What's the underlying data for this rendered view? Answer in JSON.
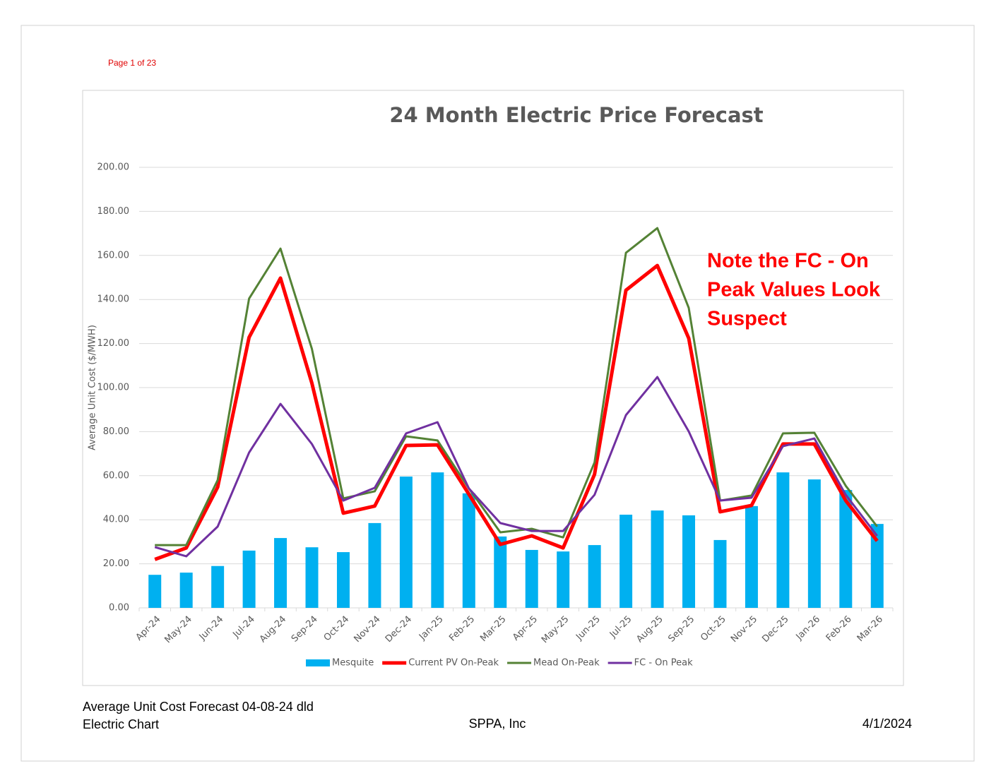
{
  "header": {
    "page": "Page 1 of 23"
  },
  "chart_data": {
    "type": "bar",
    "title": "24 Month Electric Price Forecast",
    "y_label": "Average Unit Cost ($/MWH)",
    "categories": [
      "Apr-24",
      "May-24",
      "Jun-24",
      "Jul-24",
      "Aug-24",
      "Sep-24",
      "Oct-24",
      "Nov-24",
      "Dec-24",
      "Jan-25",
      "Feb-25",
      "Mar-25",
      "Apr-25",
      "May-25",
      "Jun-25",
      "Jul-25",
      "Aug-25",
      "Sep-25",
      "Oct-25",
      "Nov-25",
      "Dec-25",
      "Jan-26",
      "Feb-26",
      "Mar-26"
    ],
    "series": [
      {
        "name": "Mesquite",
        "type": "bar",
        "color": "#00b0f0",
        "values": [
          15,
          16,
          19,
          26,
          31.7,
          27.5,
          25.3,
          38.5,
          59.6,
          61.5,
          52,
          32.4,
          26.3,
          25.6,
          28.5,
          42.3,
          44.2,
          42,
          30.8,
          46.2,
          61.5,
          58.3,
          53.5,
          38.1
        ]
      },
      {
        "name": "Current PV On-Peak",
        "type": "line",
        "color": "#ff0000",
        "width": 5,
        "values": [
          22,
          27.2,
          54.8,
          122.8,
          149.7,
          102,
          43,
          46.2,
          73.7,
          74,
          51.6,
          28.8,
          32.7,
          27.2,
          60.6,
          144.2,
          155.4,
          122.4,
          43.6,
          46.5,
          74.4,
          74.4,
          48.7,
          30.4
        ]
      },
      {
        "name": "Mead On-Peak",
        "type": "line",
        "color": "#548235",
        "width": 3,
        "values": [
          28.5,
          28.5,
          58,
          140.4,
          163.1,
          117.6,
          49.7,
          52.9,
          77.9,
          76,
          54.2,
          34.3,
          35.9,
          32,
          66,
          161.2,
          172.4,
          136.2,
          48.7,
          51,
          79.2,
          79.5,
          55.4,
          36.9
        ]
      },
      {
        "name": "FC - On Peak",
        "type": "line",
        "color": "#7030a0",
        "width": 3,
        "values": [
          27.6,
          23.4,
          36.9,
          70.5,
          92.6,
          74.4,
          48.7,
          54.5,
          79.2,
          84.3,
          54.2,
          38.5,
          34.9,
          34.9,
          51.3,
          87.5,
          104.8,
          80.1,
          48.7,
          50,
          73.4,
          76.9,
          51.3,
          32.7
        ]
      }
    ],
    "ylim": [
      0,
      200
    ],
    "yticks": [
      {
        "value": 0,
        "label": "0.00"
      },
      {
        "value": 20,
        "label": "20.00"
      },
      {
        "value": 40,
        "label": "40.00"
      },
      {
        "value": 60,
        "label": "60.00"
      },
      {
        "value": 80,
        "label": "80.00"
      },
      {
        "value": 100,
        "label": "100.00"
      },
      {
        "value": 120,
        "label": "120.00"
      },
      {
        "value": 140,
        "label": "140.00"
      },
      {
        "value": 160,
        "label": "160.00"
      },
      {
        "value": 180,
        "label": "180.00"
      },
      {
        "value": 200,
        "label": "200.00"
      }
    ],
    "grid": true,
    "legend": "bottom",
    "annotation_lines": [
      "Note the FC - On",
      "Peak Values Look",
      "Suspect"
    ]
  },
  "footer": {
    "left_lines": [
      "Average Unit Cost Forecast 04-08-24 dld",
      "Electric Chart"
    ],
    "center": "SPPA, Inc",
    "right": "4/1/2024"
  }
}
